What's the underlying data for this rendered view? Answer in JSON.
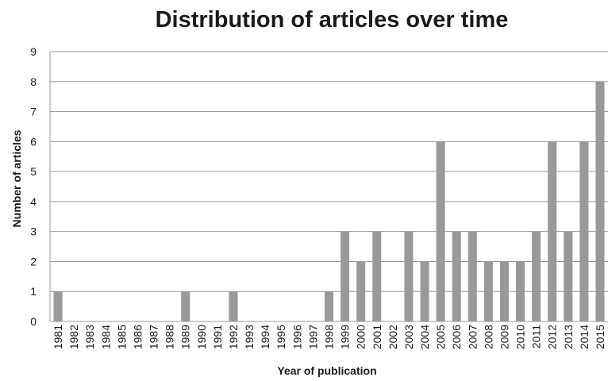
{
  "chart_data": {
    "type": "bar",
    "title": "Distribution of articles over time",
    "xlabel": "Year of publication",
    "ylabel": "Number of articles",
    "ylim": [
      0,
      9
    ],
    "yticks": [
      0,
      1,
      2,
      3,
      4,
      5,
      6,
      7,
      8,
      9
    ],
    "grid": true,
    "bar_color": "#999999",
    "categories": [
      "1981",
      "1982",
      "1983",
      "1984",
      "1985",
      "1986",
      "1987",
      "1988",
      "1989",
      "1990",
      "1991",
      "1992",
      "1993",
      "1994",
      "1995",
      "1996",
      "1997",
      "1998",
      "1999",
      "2000",
      "2001",
      "2002",
      "2003",
      "2004",
      "2005",
      "2006",
      "2007",
      "2008",
      "2009",
      "2010",
      "2011",
      "2012",
      "2013",
      "2014",
      "2015"
    ],
    "values": [
      1,
      0,
      0,
      0,
      0,
      0,
      0,
      0,
      1,
      0,
      0,
      1,
      0,
      0,
      0,
      0,
      0,
      1,
      3,
      2,
      3,
      0,
      3,
      2,
      6,
      3,
      3,
      2,
      2,
      2,
      3,
      6,
      3,
      6,
      8
    ]
  }
}
